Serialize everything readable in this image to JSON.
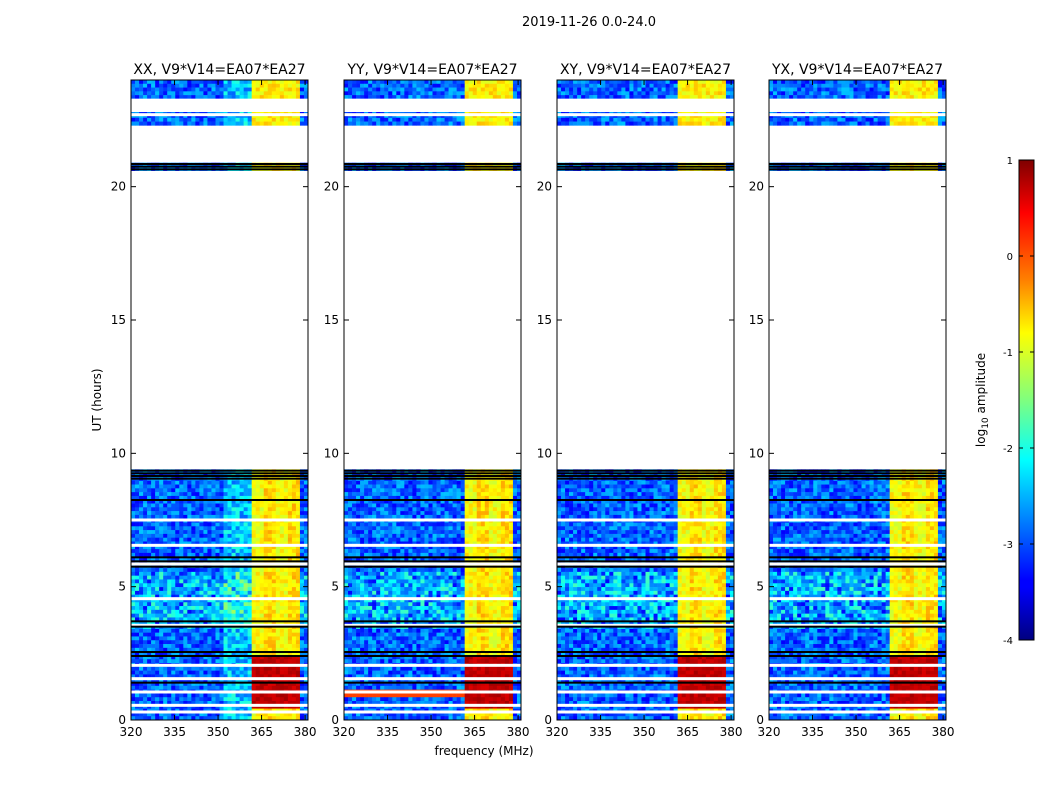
{
  "suptitle": "2019-11-26 0.0-24.0",
  "chart_data": {
    "type": "heatmap",
    "xlabel": "frequency (MHz)",
    "ylabel": "UT (hours)",
    "xlim": [
      320,
      381
    ],
    "ylim": [
      0,
      24
    ],
    "xticks": [
      320,
      335,
      350,
      365,
      380
    ],
    "yticks": [
      0,
      5,
      10,
      15,
      20
    ],
    "panels": [
      {
        "title": "XX, V9*V14=EA07*EA27",
        "pol": "XX"
      },
      {
        "title": "YY, V9*V14=EA07*EA27",
        "pol": "YY"
      },
      {
        "title": "XY, V9*V14=EA07*EA27",
        "pol": "XY"
      },
      {
        "title": "YX, V9*V14=EA07*EA27",
        "pol": "YX"
      }
    ],
    "colorbar": {
      "label": "log10 amplitude",
      "label_main": "log",
      "label_sub": "10",
      "label_tail": " amplitude",
      "range": [
        -4,
        1
      ],
      "ticks": [
        -4,
        -3,
        -2,
        -1,
        0,
        1
      ],
      "colormap": "jet"
    },
    "data_coverage_ut": [
      [
        0,
        9.4
      ],
      [
        20.6,
        20.9
      ],
      [
        22.3,
        24
      ]
    ],
    "bright_band_mhz": [
      361,
      378
    ],
    "bright_band_ut": [
      0,
      9.0
    ]
  }
}
